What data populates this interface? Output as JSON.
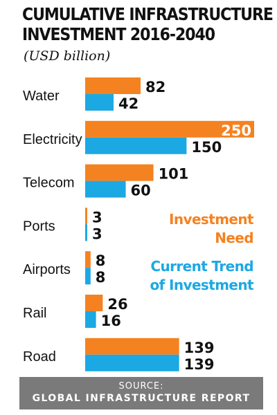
{
  "header": {
    "title_lines": [
      "CUMULATIVE INFRASTRUCTURE",
      "INVESTMENT 2016-2040"
    ],
    "subtitle": "(USD billion)"
  },
  "legend": {
    "need_lines": [
      "Investment",
      "Need"
    ],
    "trend_lines": [
      "Current Trend",
      "of Investment"
    ]
  },
  "footer": {
    "source_label": "SOURCE:",
    "source_name": "GLOBAL INFRASTRUCTURE REPORT"
  },
  "colors": {
    "need": "#f58220",
    "trend": "#1ca8e3",
    "text": "#111111",
    "footer_bg": "#7a7a7a"
  },
  "chart_data": {
    "type": "bar",
    "orientation": "horizontal",
    "title": "CUMULATIVE INFRASTRUCTURE INVESTMENT 2016-2040",
    "subtitle": "(USD billion)",
    "categories": [
      "Water",
      "Electricity",
      "Telecom",
      "Ports",
      "Airports",
      "Rail",
      "Road"
    ],
    "series": [
      {
        "name": "Investment Need",
        "color": "#f58220",
        "values": [
          82,
          250,
          101,
          3,
          8,
          26,
          139
        ]
      },
      {
        "name": "Current Trend of Investment",
        "color": "#1ca8e3",
        "values": [
          42,
          150,
          60,
          3,
          8,
          16,
          139
        ]
      }
    ],
    "xlim": [
      0,
      250
    ],
    "grid": false,
    "legend_position": "right"
  }
}
